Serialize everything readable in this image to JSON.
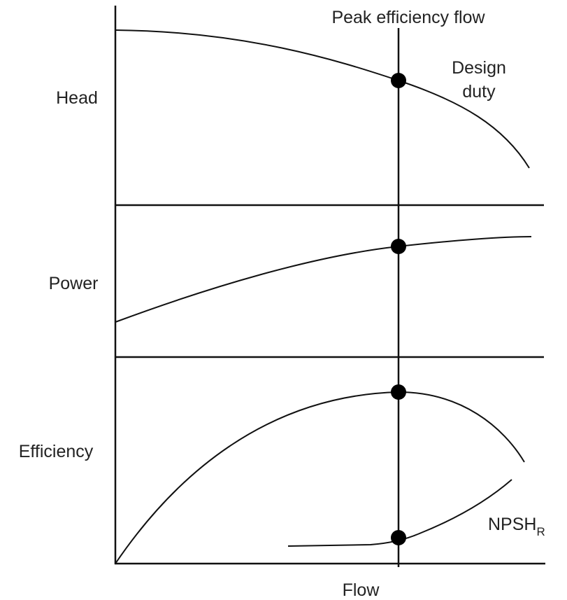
{
  "title": "Peak efficiency flow",
  "annotation": "Design duty",
  "labels": {
    "head": "Head",
    "power": "Power",
    "efficiency": "Efficiency",
    "npsh": {
      "text": "NPSH",
      "subscript": "R"
    }
  },
  "x_axis_label": "Flow"
}
